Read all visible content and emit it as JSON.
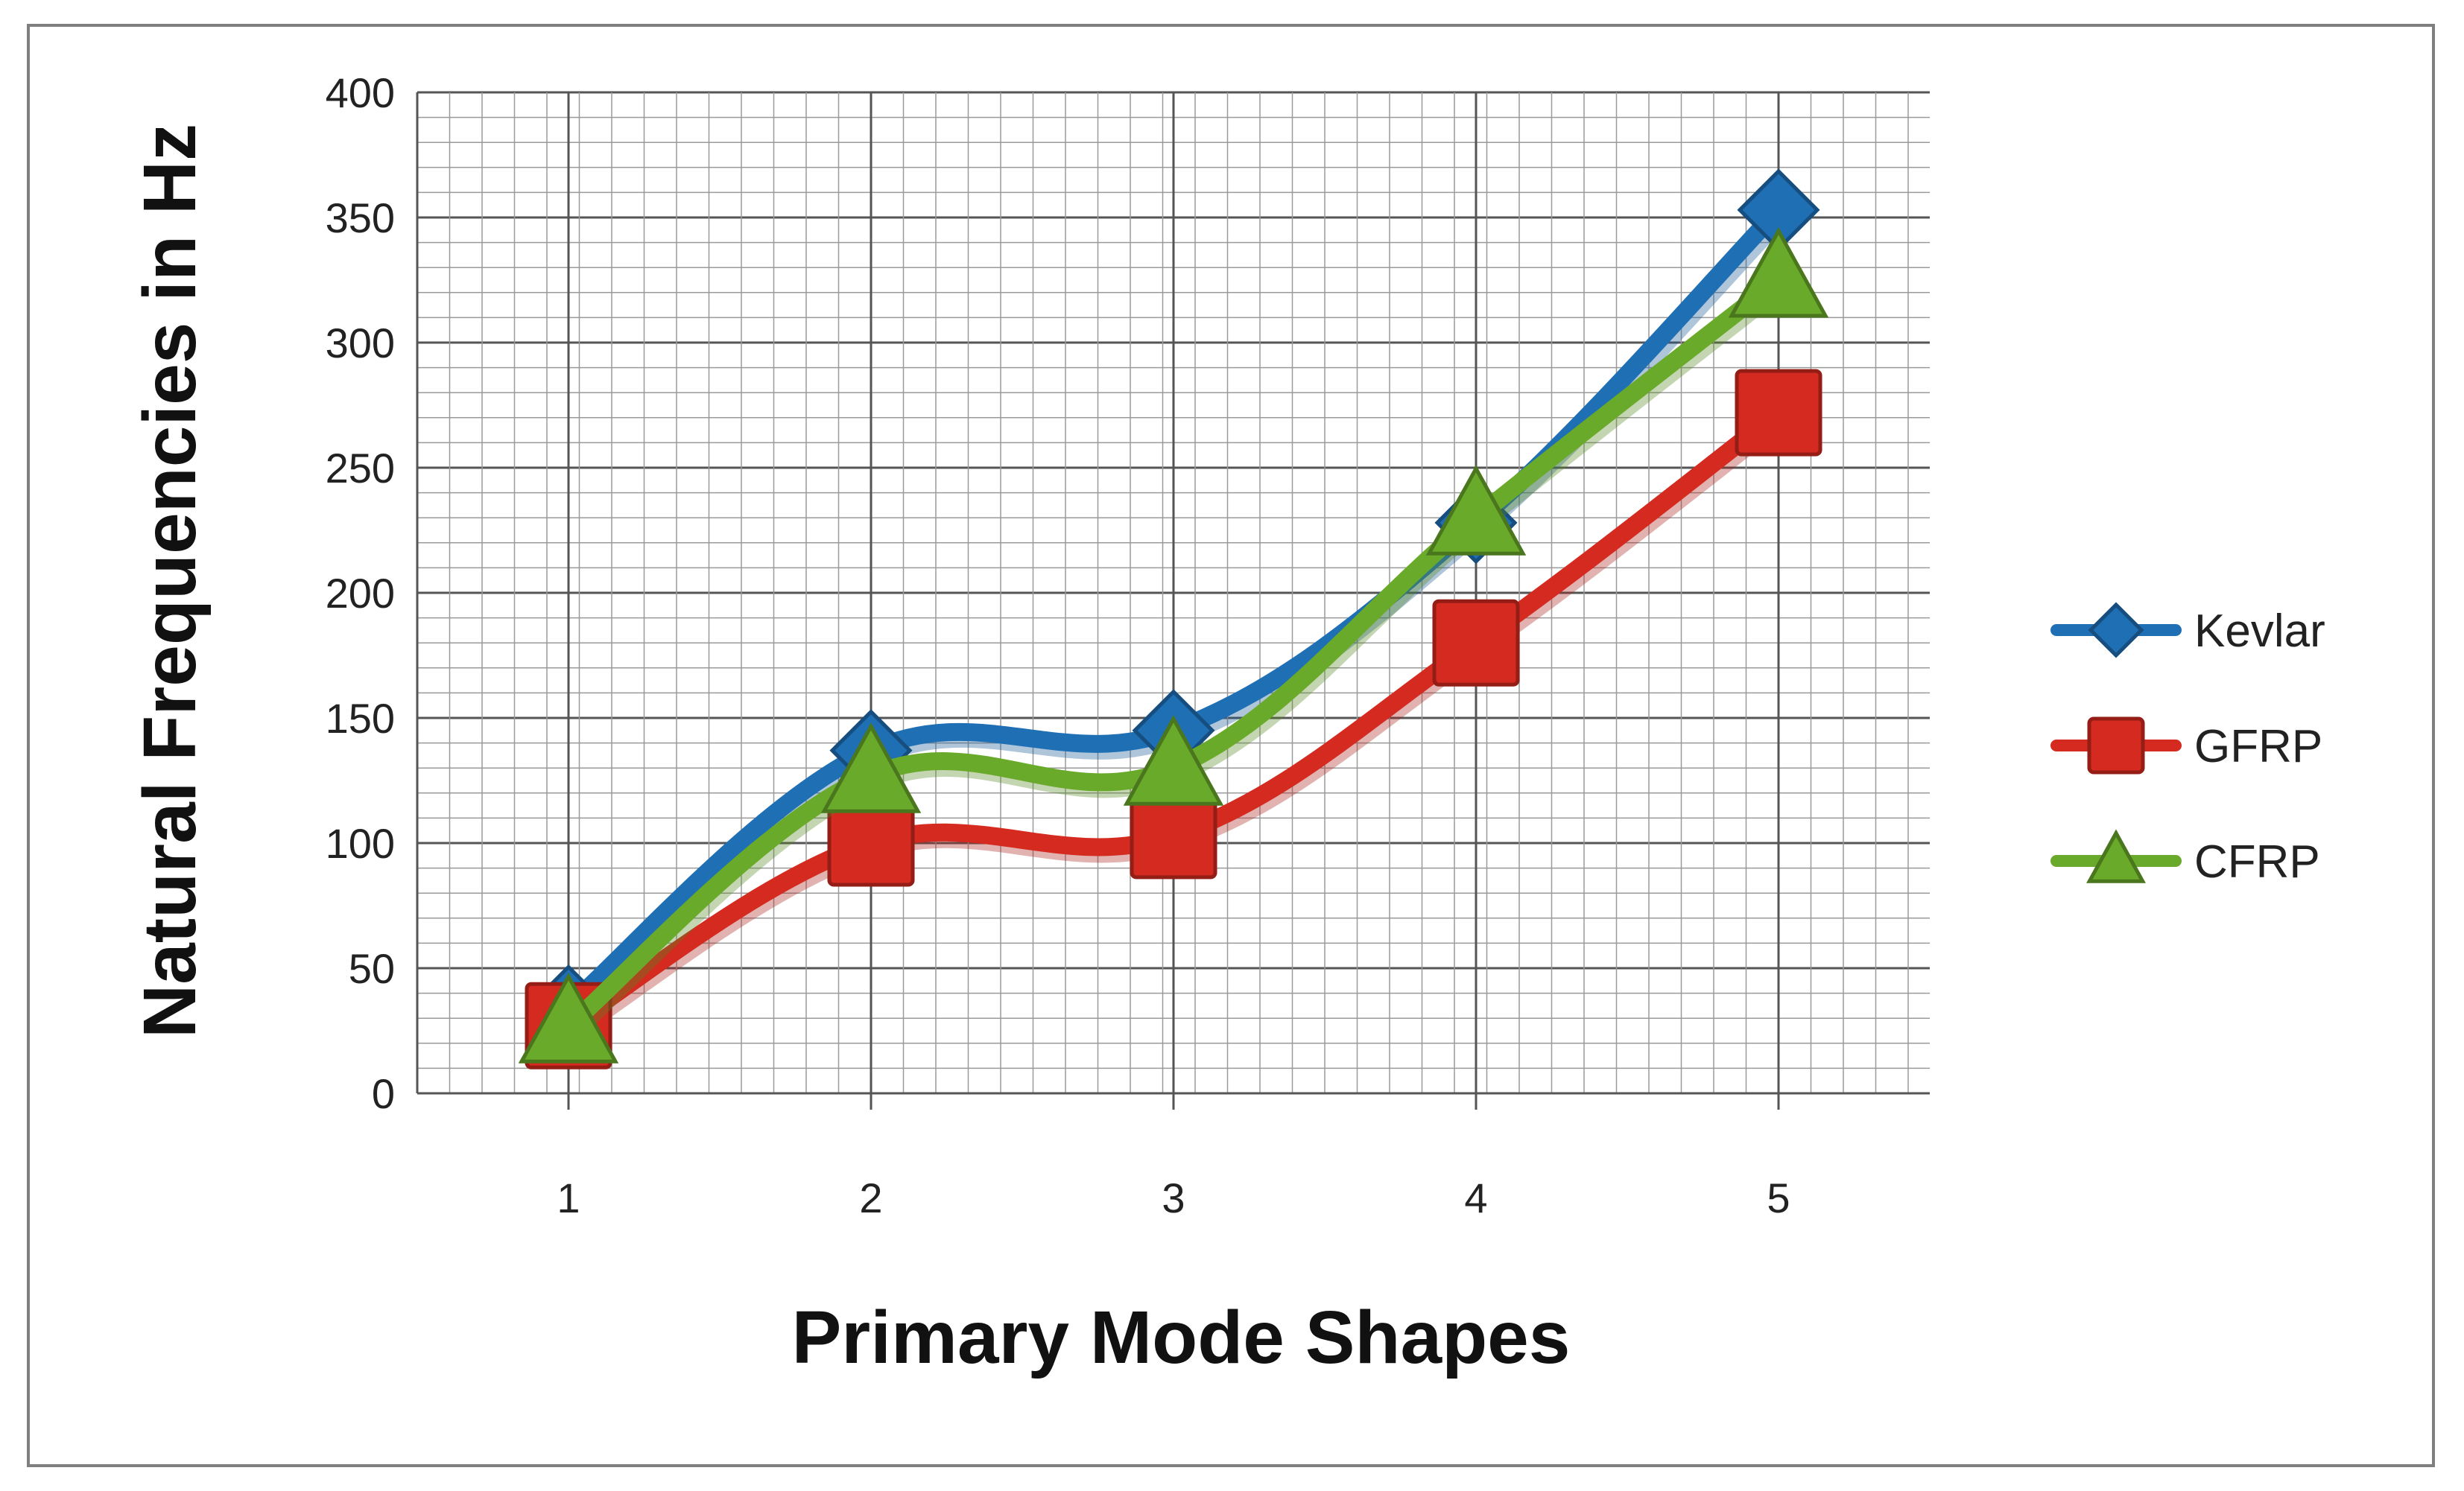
{
  "chart_data": {
    "type": "line",
    "title": "",
    "xlabel": "Primary Mode Shapes",
    "ylabel": "Natural Frequencies in Hz",
    "categories": [
      "1",
      "2",
      "3",
      "4",
      "5"
    ],
    "ylim": [
      0,
      400
    ],
    "yticks": [
      "0",
      "50",
      "100",
      "150",
      "200",
      "250",
      "300",
      "350",
      "400"
    ],
    "grid": "major and minor",
    "legend_position": "right",
    "series": [
      {
        "name": "Kevlar",
        "values": [
          35,
          137,
          145,
          228,
          353
        ],
        "color": "#1f6fb5",
        "marker": "diamond"
      },
      {
        "name": "GFRP",
        "values": [
          27,
          100,
          103,
          180,
          272
        ],
        "color": "#d42a1f",
        "marker": "square"
      },
      {
        "name": "CFRP",
        "values": [
          27,
          127,
          130,
          230,
          325
        ],
        "color": "#6aaa2a",
        "marker": "triangle"
      }
    ]
  }
}
